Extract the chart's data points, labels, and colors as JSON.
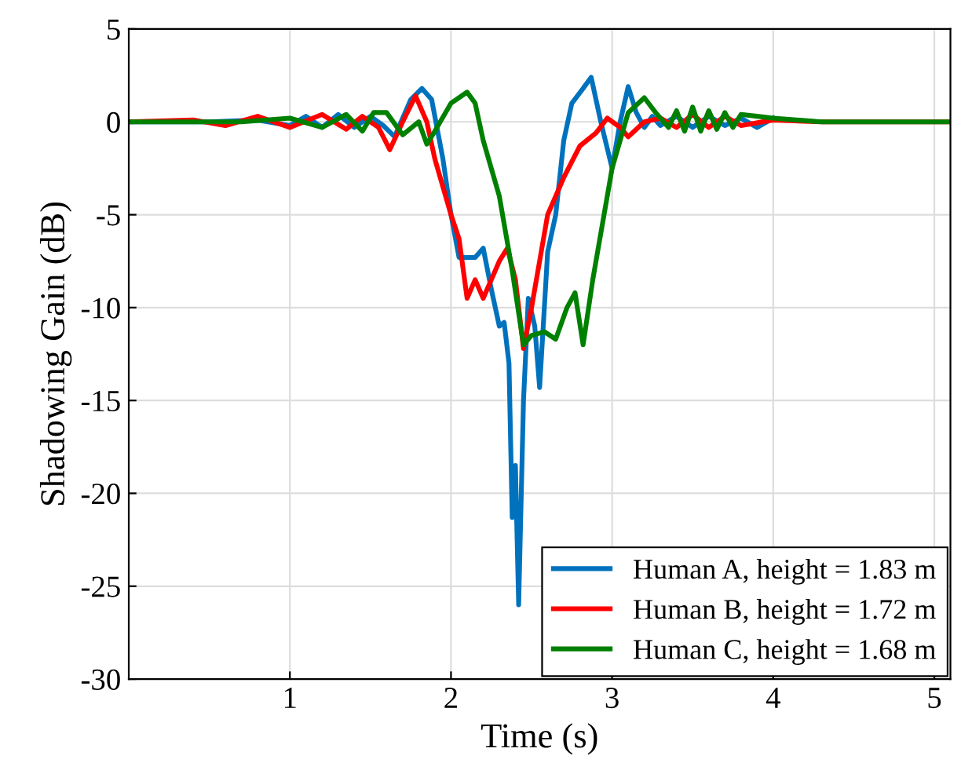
{
  "chart_data": {
    "type": "line",
    "xlabel": "Time (s)",
    "ylabel": "Shadowing Gain (dB)",
    "xlim": [
      0,
      5.1
    ],
    "xticks": [
      1,
      2,
      3,
      4,
      5
    ],
    "ylim": [
      -30,
      5
    ],
    "yticks": [
      -30,
      -25,
      -20,
      -15,
      -10,
      -5,
      0,
      5
    ],
    "grid": true,
    "legend": "bottom right",
    "line_style": "solid",
    "marker": "none",
    "series": [
      {
        "name": "Human A, height = 1.83 m",
        "color": "#0072bd",
        "x": [
          0,
          0.5,
          0.8,
          1.0,
          1.1,
          1.2,
          1.3,
          1.4,
          1.5,
          1.58,
          1.65,
          1.75,
          1.82,
          1.88,
          1.95,
          2.0,
          2.05,
          2.15,
          2.2,
          2.25,
          2.3,
          2.33,
          2.36,
          2.38,
          2.4,
          2.42,
          2.45,
          2.48,
          2.52,
          2.55,
          2.6,
          2.65,
          2.7,
          2.75,
          2.82,
          2.87,
          2.93,
          3.0,
          3.05,
          3.1,
          3.15,
          3.2,
          3.25,
          3.3,
          3.4,
          3.5,
          3.6,
          3.7,
          3.8,
          3.9,
          4.0
        ],
        "values": [
          0,
          0,
          0.1,
          -0.2,
          0.3,
          -0.3,
          0.4,
          -0.3,
          0.3,
          -0.2,
          -0.8,
          1.2,
          1.8,
          1.2,
          -2,
          -5,
          -7.3,
          -7.3,
          -6.8,
          -9,
          -11,
          -10.8,
          -13,
          -21.3,
          -18.5,
          -26,
          -15,
          -9.5,
          -11,
          -14.3,
          -7,
          -5,
          -1,
          1,
          1.8,
          2.4,
          0,
          -2.5,
          0,
          1.9,
          0.5,
          -0.3,
          0.3,
          -0.2,
          0.3,
          -0.3,
          0.3,
          -0.2,
          0.2,
          -0.3,
          0.2
        ]
      },
      {
        "name": "Human B, height = 1.72 m",
        "color": "#ff0000",
        "x": [
          0,
          0.4,
          0.6,
          0.8,
          1.0,
          1.2,
          1.35,
          1.45,
          1.55,
          1.62,
          1.7,
          1.78,
          1.85,
          1.9,
          1.95,
          2.0,
          2.05,
          2.1,
          2.15,
          2.2,
          2.3,
          2.35,
          2.4,
          2.45,
          2.5,
          2.55,
          2.6,
          2.7,
          2.8,
          2.9,
          2.97,
          3.05,
          3.1,
          3.2,
          3.3,
          3.4,
          3.5,
          3.6,
          3.7,
          3.8,
          4.0,
          4.3,
          5.1
        ],
        "values": [
          0,
          0.1,
          -0.2,
          0.3,
          -0.3,
          0.4,
          -0.4,
          0.3,
          -0.3,
          -1.5,
          0,
          1.4,
          0,
          -2,
          -3.5,
          -5,
          -6.3,
          -9.5,
          -8.5,
          -9.5,
          -7.5,
          -6.8,
          -8.5,
          -12.2,
          -10,
          -7.5,
          -5,
          -3,
          -1.3,
          -0.6,
          0.2,
          -0.3,
          -0.8,
          0,
          0.2,
          -0.3,
          0.4,
          -0.3,
          0.3,
          -0.2,
          0.1,
          0,
          0
        ]
      },
      {
        "name": "Human C, height = 1.68 m",
        "color": "#008000",
        "x": [
          0,
          0.7,
          1.0,
          1.2,
          1.35,
          1.45,
          1.52,
          1.6,
          1.7,
          1.8,
          1.85,
          1.9,
          2.0,
          2.1,
          2.15,
          2.2,
          2.3,
          2.38,
          2.45,
          2.5,
          2.58,
          2.65,
          2.72,
          2.77,
          2.82,
          2.88,
          2.95,
          3.0,
          3.1,
          3.2,
          3.27,
          3.35,
          3.4,
          3.45,
          3.5,
          3.55,
          3.6,
          3.65,
          3.7,
          3.75,
          3.8,
          3.9,
          4.0,
          4.3,
          5.1
        ],
        "values": [
          0,
          0,
          0.2,
          -0.3,
          0.4,
          -0.5,
          0.5,
          0.5,
          -0.7,
          0,
          -1.2,
          -0.5,
          1.0,
          1.6,
          1.0,
          -1,
          -4,
          -8,
          -12,
          -11.5,
          -11.3,
          -11.7,
          -10,
          -9.2,
          -12,
          -8.5,
          -5,
          -2.5,
          0.5,
          1.3,
          0.5,
          -0.3,
          0.6,
          -0.5,
          0.8,
          -0.5,
          0.6,
          -0.4,
          0.5,
          -0.3,
          0.4,
          0.3,
          0.2,
          0,
          0
        ]
      }
    ]
  }
}
